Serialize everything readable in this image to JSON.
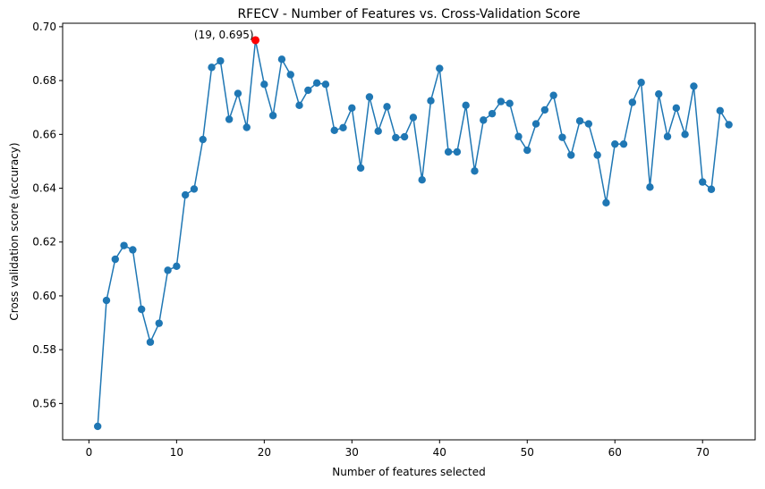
{
  "chart_data": {
    "type": "line",
    "title": "RFECV - Number of Features vs. Cross-Validation Score",
    "xlabel": "Number of features selected",
    "ylabel": "Cross validation score (accuracy)",
    "xlim": [
      -3,
      76
    ],
    "ylim": [
      0.5465,
      0.7013
    ],
    "xticks": [
      0,
      10,
      20,
      30,
      40,
      50,
      60,
      70
    ],
    "yticks": [
      0.56,
      0.58,
      0.6,
      0.62,
      0.64,
      0.66,
      0.68,
      0.7
    ],
    "ytick_labels": [
      "0.56",
      "0.58",
      "0.60",
      "0.62",
      "0.64",
      "0.66",
      "0.68",
      "0.70"
    ],
    "grid": false,
    "line_color": "#1f77b4",
    "highlight_color": "#ff0000",
    "series": [
      {
        "x": [
          1,
          2,
          3,
          4,
          5,
          6,
          7,
          8,
          9,
          10,
          11,
          12,
          13,
          14,
          15,
          16,
          17,
          18,
          19,
          20,
          21,
          22,
          23,
          24,
          25,
          26,
          27,
          28,
          29,
          30,
          31,
          32,
          33,
          34,
          35,
          36,
          37,
          38,
          39,
          40,
          41,
          42,
          43,
          44,
          45,
          46,
          47,
          48,
          49,
          50,
          51,
          52,
          53,
          54,
          55,
          56,
          57,
          58,
          59,
          60,
          61,
          62,
          63,
          64,
          65,
          66,
          67,
          68,
          69,
          70,
          71,
          72,
          73
        ],
        "y": [
          0.5515,
          0.5983,
          0.6136,
          0.6187,
          0.6171,
          0.595,
          0.5828,
          0.5898,
          0.6095,
          0.611,
          0.6375,
          0.6397,
          0.6581,
          0.6849,
          0.6873,
          0.6656,
          0.6752,
          0.6626,
          0.695,
          0.6786,
          0.667,
          0.6879,
          0.6822,
          0.6708,
          0.6764,
          0.6791,
          0.6786,
          0.6615,
          0.6625,
          0.6698,
          0.6475,
          0.6739,
          0.6612,
          0.6703,
          0.6588,
          0.6591,
          0.6663,
          0.6431,
          0.6725,
          0.6845,
          0.6535,
          0.6535,
          0.6708,
          0.6464,
          0.6653,
          0.6677,
          0.6722,
          0.6715,
          0.6592,
          0.6541,
          0.6639,
          0.6691,
          0.6745,
          0.6589,
          0.6523,
          0.665,
          0.6639,
          0.6523,
          0.6346,
          0.6564,
          0.6564,
          0.6719,
          0.6793,
          0.6404,
          0.675,
          0.6592,
          0.6698,
          0.66,
          0.6779,
          0.6423,
          0.6396,
          0.6688,
          0.6636
        ]
      }
    ],
    "highlight": {
      "x": 19,
      "y": 0.695,
      "label": "(19, 0.695)"
    }
  }
}
